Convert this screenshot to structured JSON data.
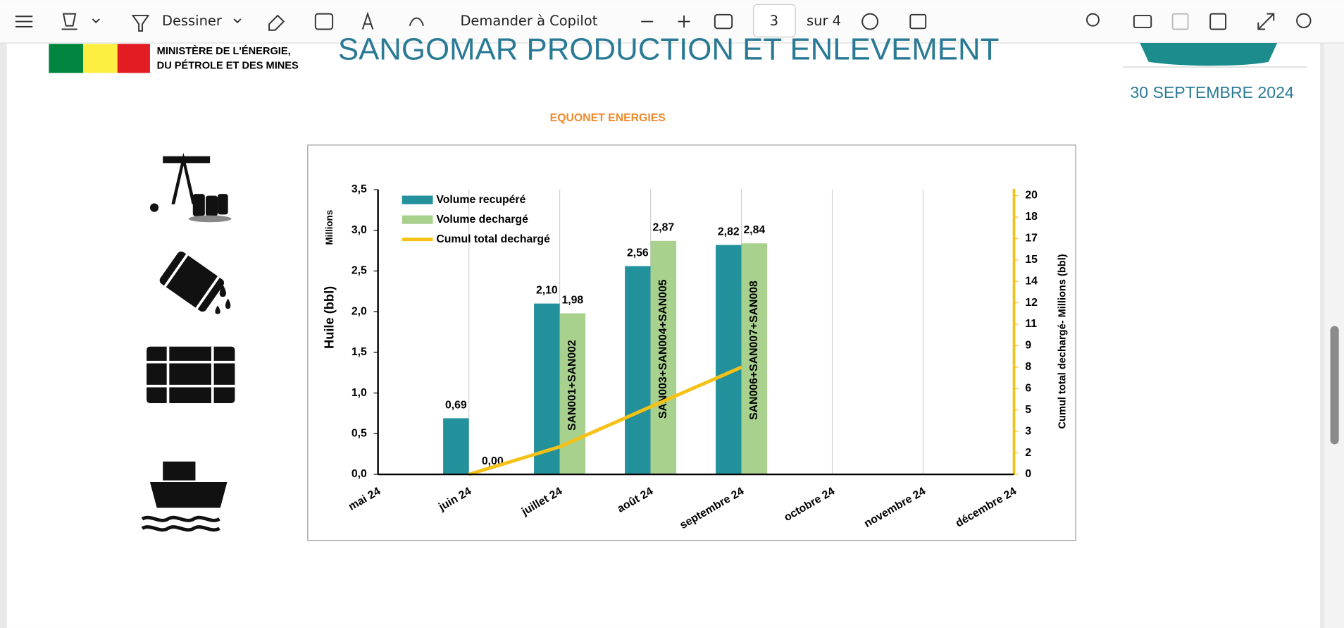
{
  "toolbar": {
    "draw": "Dessiner",
    "copilot": "Demander à Copilot",
    "page_number": "3",
    "page_count": "sur 4"
  },
  "page": {
    "ministry_line1": "MINISTÈRE DE L'ÉNERGIE,",
    "ministry_line2": "DU PÉTROLE ET DES MINES",
    "title": "SANGOMAR  PRODUCTION ET ENLEVEMENT",
    "date": "30 SEPTEMBRE 2024",
    "company": "EQUONET ENERGIES"
  },
  "chart_data": {
    "type": "bar",
    "categories": [
      "mai 24",
      "juin 24",
      "juillet 24",
      "août 24",
      "septembre 24",
      "octobre 24",
      "novembre 24",
      "décembre 24"
    ],
    "ylabel": "Huile (bbl)",
    "yunit": "Millions",
    "y2label": "Cumul total dechargé-  Millions (bbl)",
    "series": [
      {
        "name": "Volume recupéré",
        "color": "#23919c",
        "values": [
          null,
          0.69,
          2.1,
          2.56,
          2.82,
          null,
          null,
          null
        ],
        "value_labels": [
          null,
          "0,69",
          "2,10",
          "2,56",
          "2,82",
          null,
          null,
          null
        ]
      },
      {
        "name": "Volume dechargé",
        "color": "#a9d18e",
        "values": [
          null,
          0,
          1.98,
          2.87,
          2.84,
          null,
          null,
          null
        ],
        "value_labels": [
          null,
          "0,00",
          "1,98",
          "2,87",
          "2,84",
          null,
          null,
          null
        ],
        "bar_labels": [
          null,
          null,
          "SAN001+SAN002",
          "SAN003+SAN004+SAN005",
          "SAN006+SAN007+SAN008",
          null,
          null,
          null
        ]
      },
      {
        "name": "Cumul total dechargé",
        "color": "#f5c116",
        "type": "line",
        "axis": "y2",
        "values": [
          null,
          0,
          1.98,
          4.85,
          7.69,
          null,
          null,
          null
        ]
      }
    ],
    "ylim": [
      0,
      3.5
    ],
    "yticks": [
      {
        "value": 0,
        "label": "0,0"
      },
      {
        "value": 0.5,
        "label": "0,5"
      },
      {
        "value": 1,
        "label": "1,0"
      },
      {
        "value": 1.5,
        "label": "1,5"
      },
      {
        "value": 2,
        "label": "2,0"
      },
      {
        "value": 2.5,
        "label": "2,5"
      },
      {
        "value": 3,
        "label": "3,0"
      },
      {
        "value": 3.5,
        "label": "3,5"
      }
    ],
    "y2lim": [
      0,
      20
    ],
    "y2ticks": [
      0,
      {
        "value": 1.54,
        "label": "2"
      },
      {
        "value": 3.08,
        "label": "3"
      },
      {
        "value": 4.62,
        "label": "5"
      },
      {
        "value": 6.15,
        "label": "6"
      },
      {
        "value": 7.69,
        "label": "8"
      },
      {
        "value": 9.23,
        "label": "9"
      },
      {
        "value": 10.77,
        "label": "11"
      },
      {
        "value": 12.31,
        "label": "12"
      },
      {
        "value": 13.85,
        "label": "14"
      },
      {
        "value": 15.38,
        "label": "15"
      },
      {
        "value": 16.92,
        "label": "17"
      },
      {
        "value": 18.46,
        "label": "18"
      },
      20
    ],
    "y2color": "#f5c116",
    "grid": true,
    "legend": "upper left"
  }
}
